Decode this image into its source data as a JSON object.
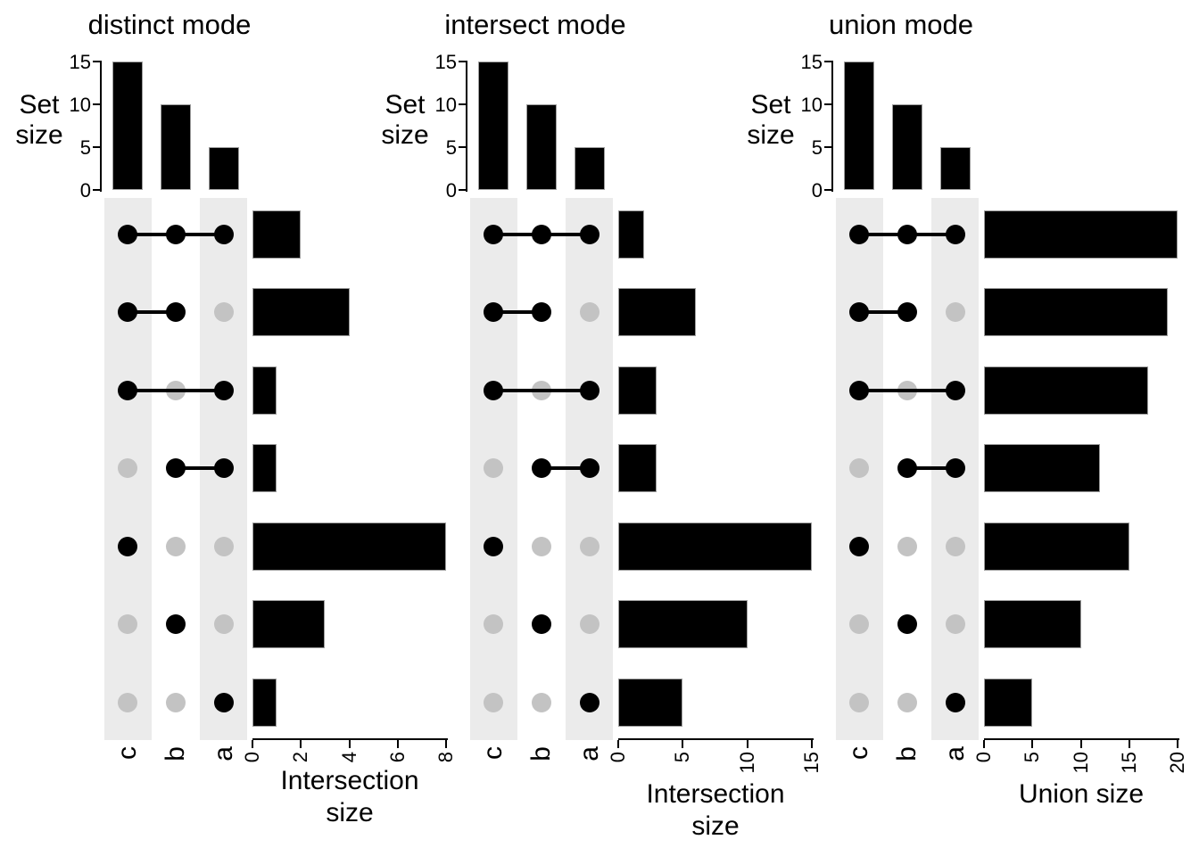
{
  "sets": [
    "c",
    "b",
    "a"
  ],
  "set_sizes": [
    15,
    10,
    5
  ],
  "set_size_axis": {
    "label": "Set size",
    "label_lines": [
      "Set",
      "size"
    ],
    "ticks": [
      0,
      5,
      10,
      15
    ],
    "max": 15
  },
  "combinations": [
    {
      "sets": [
        "c",
        "b",
        "a"
      ]
    },
    {
      "sets": [
        "c",
        "b"
      ]
    },
    {
      "sets": [
        "c",
        "a"
      ]
    },
    {
      "sets": [
        "b",
        "a"
      ]
    },
    {
      "sets": [
        "c"
      ]
    },
    {
      "sets": [
        "b"
      ]
    },
    {
      "sets": [
        "a"
      ]
    }
  ],
  "panels": [
    {
      "title": "distinct mode",
      "xlabel": "Intersection size",
      "xlabel_lines": [
        "Intersection",
        "size"
      ],
      "x_ticks": [
        0,
        2,
        4,
        6,
        8
      ],
      "x_max": 8,
      "values": [
        2,
        4,
        1,
        1,
        8,
        3,
        1
      ]
    },
    {
      "title": "intersect mode",
      "xlabel": "Intersection size",
      "xlabel_lines": [
        "Intersection",
        "size"
      ],
      "x_ticks": [
        0,
        5,
        10,
        15
      ],
      "x_max": 15,
      "values": [
        2,
        6,
        3,
        3,
        15,
        10,
        5
      ]
    },
    {
      "title": "union mode",
      "xlabel": "Union size",
      "xlabel_lines": [
        "Union size"
      ],
      "x_ticks": [
        0,
        5,
        10,
        15,
        20
      ],
      "x_max": 20,
      "values": [
        20,
        19,
        17,
        12,
        15,
        10,
        5
      ]
    }
  ],
  "colors": {
    "bar": "#000000",
    "bar_edge": "#9c9c9c",
    "active_dot": "#000000",
    "inactive_dot": "#c3c3c3",
    "stripe": "#ebebeb",
    "axis": "#000000",
    "background": "#ffffff"
  },
  "chart_data": [
    {
      "type": "bar",
      "title": "Set size",
      "orientation": "vertical",
      "categories": [
        "c",
        "b",
        "a"
      ],
      "values": [
        15,
        10,
        5
      ],
      "ylabel": "Set size",
      "ylim": [
        0,
        15
      ],
      "yticks": [
        0,
        5,
        10,
        15
      ],
      "note": "identical set-size bar chart shown above each of the three panels"
    },
    {
      "type": "bar",
      "title": "distinct mode",
      "orientation": "horizontal",
      "categories": [
        "c&b&a",
        "c&b",
        "c&a",
        "b&a",
        "c",
        "b",
        "a"
      ],
      "values": [
        2,
        4,
        1,
        1,
        8,
        3,
        1
      ],
      "xlabel": "Intersection size",
      "xlim": [
        0,
        8
      ],
      "xticks": [
        0,
        2,
        4,
        6,
        8
      ]
    },
    {
      "type": "bar",
      "title": "intersect mode",
      "orientation": "horizontal",
      "categories": [
        "c∩b∩a",
        "c∩b",
        "c∩a",
        "b∩a",
        "c",
        "b",
        "a"
      ],
      "values": [
        2,
        6,
        3,
        3,
        15,
        10,
        5
      ],
      "xlabel": "Intersection size",
      "xlim": [
        0,
        15
      ],
      "xticks": [
        0,
        5,
        10,
        15
      ]
    },
    {
      "type": "bar",
      "title": "union mode",
      "orientation": "horizontal",
      "categories": [
        "c∪b∪a",
        "c∪b",
        "c∪a",
        "b∪a",
        "c",
        "b",
        "a"
      ],
      "values": [
        20,
        19,
        17,
        12,
        15,
        10,
        5
      ],
      "xlabel": "Union size",
      "xlim": [
        0,
        20
      ],
      "xticks": [
        0,
        5,
        10,
        15,
        20
      ]
    }
  ]
}
